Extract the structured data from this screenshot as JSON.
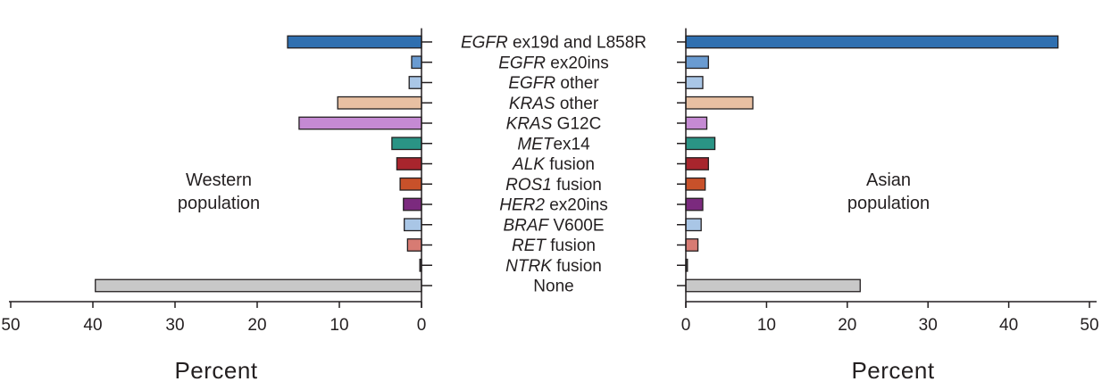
{
  "chart_data": {
    "type": "bar",
    "orientation": "horizontal",
    "layout": "back-to-back",
    "categories": [
      {
        "italic": "EGFR",
        "rest": " ex19d and L858R"
      },
      {
        "italic": "EGFR",
        "rest": " ex20ins"
      },
      {
        "italic": "EGFR",
        "rest": " other"
      },
      {
        "italic": "KRAS",
        "rest": " other"
      },
      {
        "italic": "KRAS",
        "rest": " G12C"
      },
      {
        "italic": "MET",
        "rest": "ex14"
      },
      {
        "italic": "ALK",
        "rest": " fusion"
      },
      {
        "italic": "ROS1",
        "rest": " fusion"
      },
      {
        "italic": "HER2",
        "rest": " ex20ins"
      },
      {
        "italic": "BRAF",
        "rest": " V600E"
      },
      {
        "italic": "RET",
        "rest": " fusion"
      },
      {
        "italic": "NTRK",
        "rest": " fusion"
      },
      {
        "italic": "",
        "rest": "None"
      }
    ],
    "colors": [
      "#2f6fb0",
      "#6a9bd1",
      "#a9c6e6",
      "#e8c0a2",
      "#c58ad3",
      "#2a9485",
      "#a8252d",
      "#c8512a",
      "#7b2a7e",
      "#a9c6e6",
      "#d77b73",
      "#555555",
      "#c8c8c8"
    ],
    "series": [
      {
        "name_lines": [
          "Western",
          "population"
        ],
        "values": [
          16.3,
          1.2,
          1.5,
          10.2,
          14.9,
          3.6,
          3.0,
          2.6,
          2.2,
          2.1,
          1.7,
          0.2,
          39.7
        ],
        "xlim": [
          50,
          0
        ],
        "ticks": [
          "50",
          "40",
          "30",
          "20",
          "10",
          "0"
        ],
        "xlabel": "Percent"
      },
      {
        "name_lines": [
          "Asian",
          "population"
        ],
        "values": [
          46.1,
          2.8,
          2.1,
          8.3,
          2.6,
          3.6,
          2.8,
          2.4,
          2.1,
          1.9,
          1.5,
          0.2,
          21.6
        ],
        "xlim": [
          0,
          50
        ],
        "ticks": [
          "0",
          "10",
          "20",
          "30",
          "40",
          "50"
        ],
        "xlabel": "Percent"
      }
    ]
  }
}
